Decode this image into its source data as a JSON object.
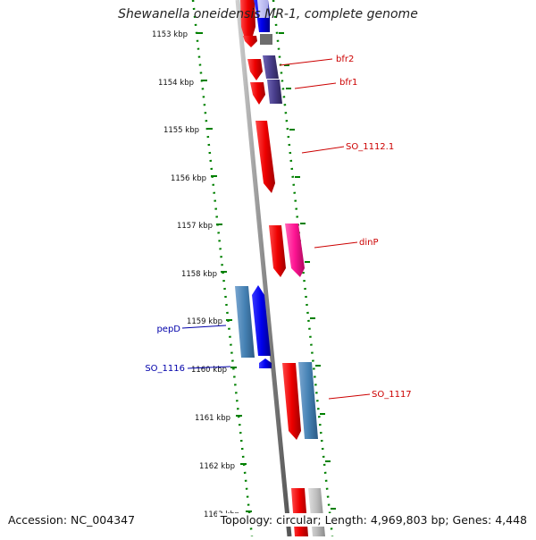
{
  "title": "Shewanella oneidensis MR-1, complete genome",
  "accession": "Accession: NC_004347",
  "topology": "Topology: circular; Length: 4,969,803 bp; Genes: 4,448",
  "ticks": [
    "1153 kbp",
    "1154 kbp",
    "1155 kbp",
    "1156 kbp",
    "1157 kbp",
    "1158 kbp",
    "1159 kbp",
    "1160 kbp",
    "1161 kbp",
    "1162 kbp",
    "1163 kbp"
  ],
  "gene_labels": {
    "bfr2": "bfr2",
    "bfr1": "bfr1",
    "so_1112_1": "SO_1112.1",
    "dinp": "dinP",
    "pepd": "pepD",
    "so_1116": "SO_1116",
    "so_1117": "SO_1117"
  },
  "colors": {
    "forward_cds": "#ff0000",
    "reverse_cds": "#0000ee",
    "blast_hit": "#4682b4",
    "pink_feature": "#ff1493",
    "slate_feature": "#483d8b",
    "backbone": "#888888",
    "tick_marks": "#008000",
    "forward_label": "#cc0000",
    "reverse_label": "#0000aa"
  }
}
